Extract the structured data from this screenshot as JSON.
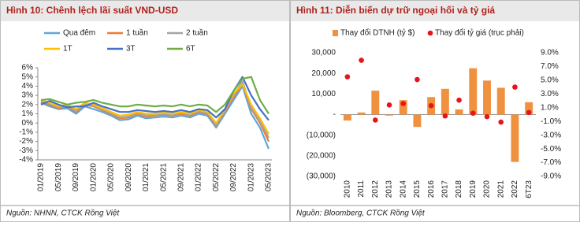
{
  "chart_data": [
    {
      "type": "line",
      "title": "Hình 10: Chênh lệch lãi suất VND-USD",
      "source": "Nguồn: NHNN, CTCK Rồng Việt",
      "categories": [
        "01/2019",
        null,
        "05/2019",
        null,
        "09/2019",
        null,
        "01/2020",
        null,
        "05/2020",
        null,
        "09/2020",
        null,
        "01/2021",
        null,
        "05/2021",
        null,
        "09/2021",
        null,
        "01/2022",
        null,
        "05/2022",
        null,
        "09/2022",
        null,
        "01/2023",
        null,
        "05/2023"
      ],
      "ylim": [
        -4,
        6
      ],
      "yticks": [
        {
          "value": 6,
          "label": "6%"
        },
        {
          "value": 5,
          "label": "5%"
        },
        {
          "value": 4,
          "label": "4%"
        },
        {
          "value": 3,
          "label": "3%"
        },
        {
          "value": 2,
          "label": "2%"
        },
        {
          "value": 1,
          "label": "1%"
        },
        {
          "value": 0,
          "label": "0%"
        },
        {
          "value": -1,
          "label": "-1%"
        },
        {
          "value": -2,
          "label": "-2%"
        },
        {
          "value": -3,
          "label": "-3%"
        },
        {
          "value": -4,
          "label": "-4%"
        }
      ],
      "series": [
        {
          "name": "Qua đêm",
          "color": "#5ea7dd",
          "values": [
            2.2,
            1.8,
            1.5,
            1.6,
            1.0,
            1.8,
            1.5,
            1.2,
            0.8,
            0.3,
            0.4,
            0.8,
            0.5,
            0.6,
            0.7,
            0.6,
            0.8,
            0.6,
            1.0,
            0.8,
            -0.5,
            1.0,
            2.5,
            4.0,
            1.0,
            -0.5,
            -2.8
          ]
        },
        {
          "name": "1 tuần",
          "color": "#ed7d31",
          "values": [
            2.3,
            2.0,
            1.6,
            1.8,
            1.2,
            2.0,
            1.8,
            1.4,
            1.0,
            0.5,
            0.6,
            1.0,
            0.7,
            0.8,
            0.9,
            0.8,
            1.0,
            0.8,
            1.2,
            1.0,
            -0.3,
            1.2,
            2.8,
            4.3,
            1.5,
            0,
            -2.0
          ]
        },
        {
          "name": "2 tuần",
          "color": "#a5a5a5",
          "values": [
            2.4,
            2.1,
            1.7,
            1.9,
            1.3,
            2.1,
            1.9,
            1.5,
            1.1,
            0.6,
            0.7,
            1.1,
            0.8,
            0.9,
            1.0,
            0.9,
            1.1,
            0.9,
            1.3,
            1.1,
            -0.2,
            1.3,
            3.0,
            4.5,
            1.7,
            0.2,
            -1.6
          ]
        },
        {
          "name": "1T",
          "color": "#ffc000",
          "values": [
            2.5,
            2.2,
            1.8,
            2.0,
            1.5,
            2.2,
            2.0,
            1.6,
            1.2,
            0.8,
            0.9,
            1.2,
            1.0,
            1.0,
            1.1,
            1.0,
            1.2,
            1.0,
            1.4,
            1.2,
            0.0,
            1.5,
            3.2,
            4.2,
            2.0,
            0.5,
            -1.2
          ]
        },
        {
          "name": "3T",
          "color": "#4472c4",
          "values": [
            2.0,
            2.4,
            2.0,
            1.7,
            1.8,
            1.8,
            2.2,
            1.8,
            1.5,
            1.2,
            1.2,
            1.4,
            1.3,
            1.2,
            1.3,
            1.2,
            1.4,
            1.2,
            1.5,
            1.4,
            0.6,
            1.5,
            3.5,
            5.0,
            3.0,
            1.5,
            0.3
          ]
        },
        {
          "name": "6T",
          "color": "#70ad47",
          "values": [
            2.5,
            2.6,
            2.3,
            2.0,
            2.2,
            2.3,
            2.5,
            2.2,
            2.0,
            1.8,
            1.8,
            2.0,
            1.9,
            1.8,
            1.9,
            1.8,
            2.0,
            1.8,
            2.0,
            1.9,
            1.2,
            2.0,
            3.5,
            4.8,
            5.0,
            2.5,
            1.0
          ]
        }
      ]
    },
    {
      "type": "bar",
      "title": "Hình 11: Diễn biến dự trữ ngoại hối và tỷ giá",
      "source": "Nguồn: Bloomberg, CTCK Rồng Việt",
      "categories": [
        "2010",
        "2011",
        "2012",
        "2013",
        "2014",
        "2015",
        "2016",
        "2017",
        "2018",
        "2019",
        "2020",
        "2021",
        "2022",
        "6T23"
      ],
      "ylim": [
        -30000,
        30000
      ],
      "yticks": [
        {
          "value": 30000,
          "label": "30,000"
        },
        {
          "value": 20000,
          "label": "20,000"
        },
        {
          "value": 10000,
          "label": "10,000"
        },
        {
          "value": 0,
          "label": "-"
        },
        {
          "value": -10000,
          "label": "(10,000)"
        },
        {
          "value": -20000,
          "label": "(20,000)"
        },
        {
          "value": -30000,
          "label": "(30,000)"
        }
      ],
      "y2lim": [
        -9,
        9
      ],
      "y2ticks": [
        {
          "value": 9,
          "label": "9.0%"
        },
        {
          "value": 7,
          "label": "7.0%"
        },
        {
          "value": 5,
          "label": "5.0%"
        },
        {
          "value": 3,
          "label": "3.0%"
        },
        {
          "value": 1,
          "label": "1.0%"
        },
        {
          "value": -1,
          "label": "-1.0%"
        },
        {
          "value": -3,
          "label": "-3.0%"
        },
        {
          "value": -5,
          "label": "-5.0%"
        },
        {
          "value": -7,
          "label": "-7.0%"
        },
        {
          "value": -9,
          "label": "-9.0%"
        }
      ],
      "series": [
        {
          "name": "Thay đổi DTNH (tỷ $)",
          "type": "bar",
          "color": "#f0913f",
          "values": [
            -2900,
            1000,
            11600,
            -500,
            7000,
            -6000,
            8500,
            12500,
            2500,
            22500,
            16500,
            13000,
            -23000,
            6000
          ]
        },
        {
          "name": "Thay đổi tỷ giá (trục phải)",
          "type": "scatter",
          "axis": "y2",
          "color": "#e8141b",
          "values": [
            5.5,
            7.9,
            -0.8,
            1.4,
            1.6,
            5.1,
            1.3,
            -0.2,
            2.1,
            0.2,
            -0.3,
            -1.1,
            4.0,
            0.3
          ]
        }
      ]
    }
  ]
}
